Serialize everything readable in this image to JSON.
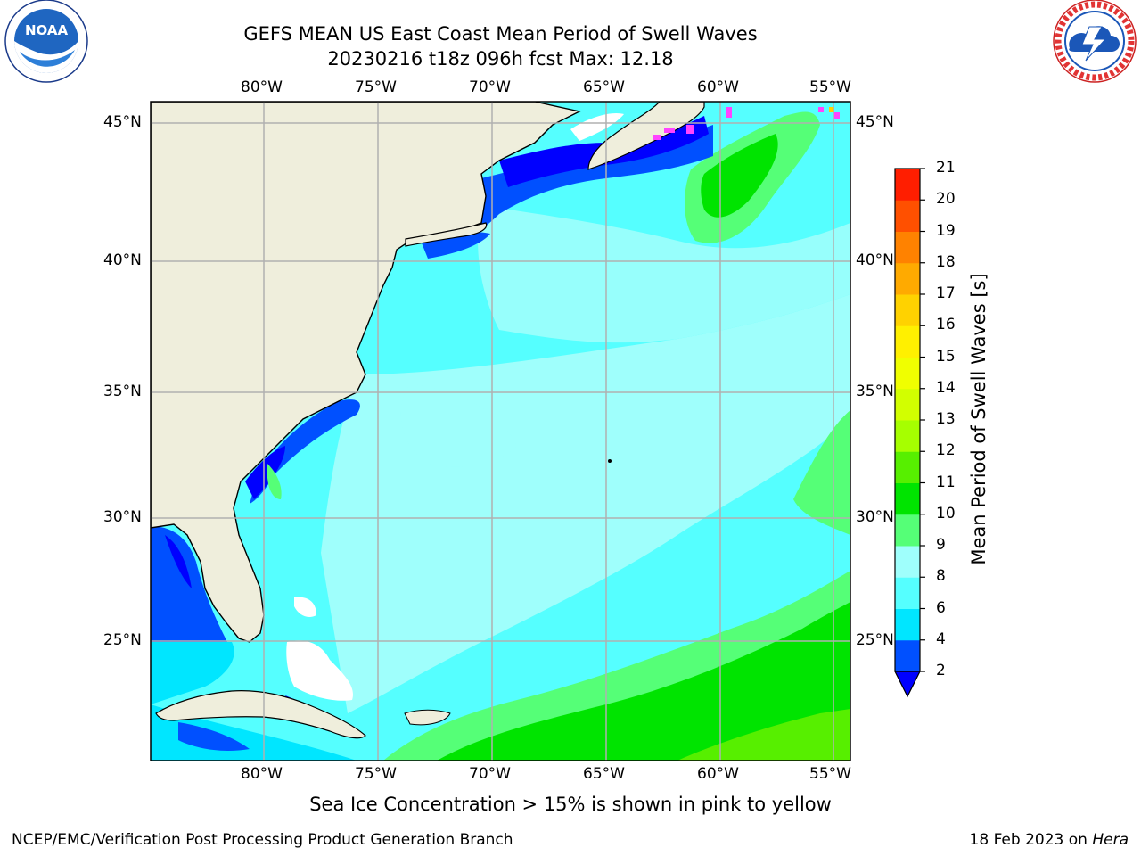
{
  "title": {
    "line1": "GEFS MEAN US East Coast Mean Period of Swell Waves",
    "line2": "20230216 t18z 096h fcst   Max: 12.18"
  },
  "logos": {
    "left": {
      "icon": "noaa-logo",
      "text": "NOAA",
      "ring_text": "NATIONAL OCEANIC AND ATMOSPHERIC ADMINISTRATION · U.S. DEPARTMENT OF COMMERCE"
    },
    "right": {
      "icon": "nws-logo",
      "ring_text": "NATIONAL WEATHER SERVICE"
    }
  },
  "map": {
    "lon_ticks": [
      "80°W",
      "75°W",
      "70°W",
      "65°W",
      "60°W",
      "55°W"
    ],
    "lat_ticks": [
      "45°N",
      "40°N",
      "35°N",
      "30°N",
      "25°N"
    ],
    "land_color": "#efeedc",
    "grid_color": "#b0b0b0"
  },
  "colorbar": {
    "label": "Mean Period of Swell Waves [s]",
    "ticks": [
      "2",
      "4",
      "6",
      "8",
      "9",
      "10",
      "11",
      "12",
      "13",
      "14",
      "15",
      "16",
      "17",
      "18",
      "19",
      "20",
      "21"
    ],
    "colors": [
      "#0050ff",
      "#00e6ff",
      "#55ffff",
      "#9ffffc",
      "#55ff77",
      "#00e400",
      "#57ef00",
      "#a6ff00",
      "#d2ff00",
      "#f0ff00",
      "#fff000",
      "#ffd200",
      "#ffaa00",
      "#ff8200",
      "#ff5000",
      "#ff1e00"
    ],
    "under_color": "#0000ff"
  },
  "footer": {
    "note": "Sea Ice Concentration > 15% is shown in pink to yellow",
    "left": "NCEP/EMC/Verification Post Processing Product Generation Branch",
    "right_date": "18 Feb 2023 on ",
    "right_host": "Hera"
  }
}
